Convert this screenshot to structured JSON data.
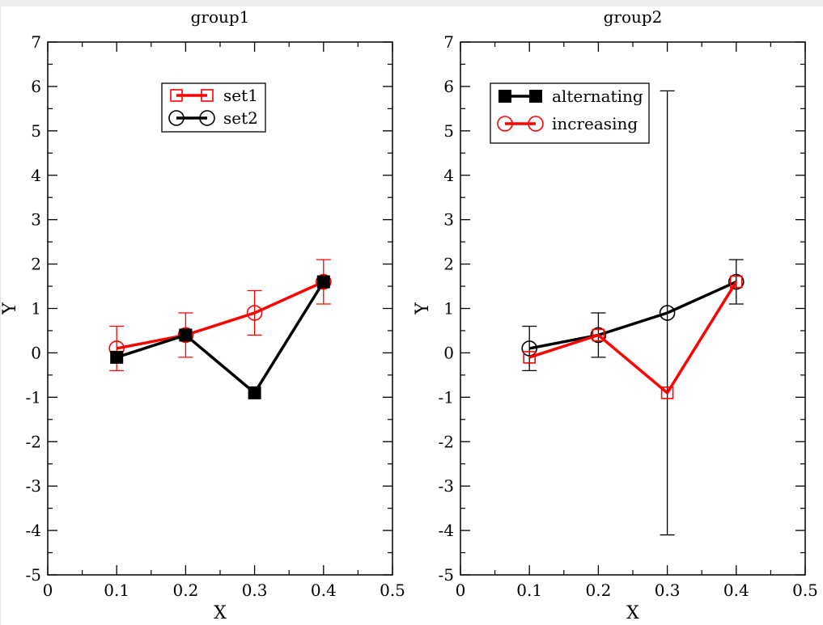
{
  "colors": {
    "red": "#ff0000",
    "black": "#000000"
  },
  "chart_data": [
    {
      "type": "line",
      "title": "group1",
      "xlabel": "X",
      "ylabel": "Y",
      "xlim": [
        0,
        0.5
      ],
      "ylim": [
        -5,
        7
      ],
      "xticks": [
        "0",
        "0.1",
        "0.2",
        "0.3",
        "0.4",
        "0.5"
      ],
      "yticks": [
        "-5",
        "-4",
        "-3",
        "-2",
        "-1",
        "0",
        "1",
        "2",
        "3",
        "4",
        "5",
        "6",
        "7"
      ],
      "legend_position": "top-center",
      "series": [
        {
          "name": "set1",
          "color": "#ff0000",
          "marker": "open-circle",
          "legend_marker": "open-square",
          "x": [
            0.1,
            0.2,
            0.3,
            0.4
          ],
          "y": [
            0.1,
            0.4,
            0.9,
            1.6
          ],
          "yerr": [
            0.5,
            0.5,
            0.5,
            0.5
          ]
        },
        {
          "name": "set2",
          "color": "#000000",
          "marker": "filled-square",
          "legend_marker": "open-circle",
          "x": [
            0.1,
            0.2,
            0.3,
            0.4
          ],
          "y": [
            -0.1,
            0.4,
            -0.9,
            1.6
          ],
          "yerr": null
        }
      ]
    },
    {
      "type": "line",
      "title": "group2",
      "xlabel": "X",
      "ylabel": "Y",
      "xlim": [
        0,
        0.5
      ],
      "ylim": [
        -5,
        7
      ],
      "xticks": [
        "0",
        "0.1",
        "0.2",
        "0.3",
        "0.4",
        "0.5"
      ],
      "yticks": [
        "-5",
        "-4",
        "-3",
        "-2",
        "-1",
        "0",
        "1",
        "2",
        "3",
        "4",
        "5",
        "6",
        "7"
      ],
      "legend_position": "top-left",
      "series": [
        {
          "name": "alternating",
          "color": "#000000",
          "marker": "open-circle",
          "legend_marker": "filled-square",
          "x": [
            0.1,
            0.2,
            0.3,
            0.4
          ],
          "y": [
            0.1,
            0.4,
            0.9,
            1.6
          ],
          "yerr": [
            0.5,
            0.5,
            5.0,
            0.5
          ]
        },
        {
          "name": "increasing",
          "color": "#ff0000",
          "marker": "open-square",
          "legend_marker": "open-circle",
          "x": [
            0.1,
            0.2,
            0.3,
            0.4
          ],
          "y": [
            -0.1,
            0.4,
            -0.9,
            1.6
          ],
          "yerr": null
        }
      ]
    }
  ]
}
